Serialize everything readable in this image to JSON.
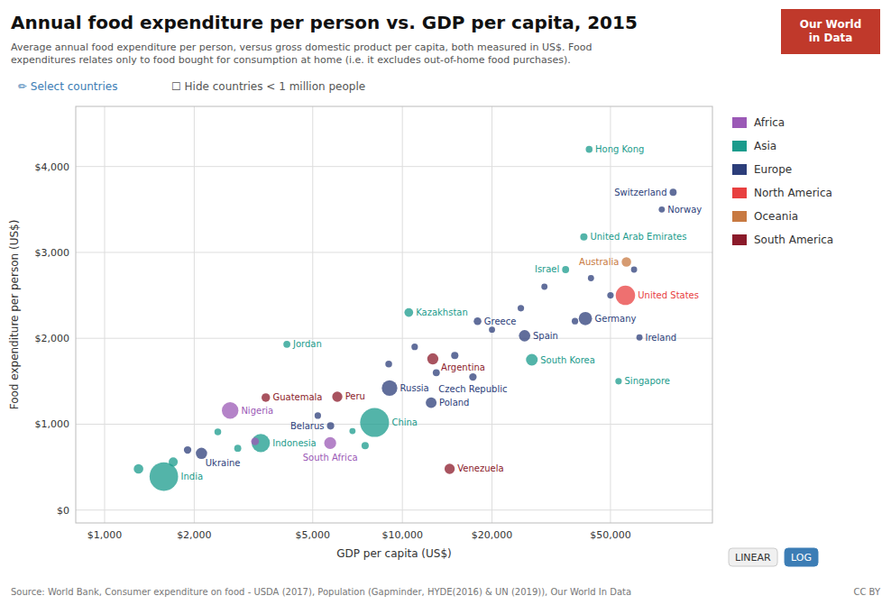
{
  "chart_data": {
    "type": "scatter",
    "title": "Annual food expenditure per person vs. GDP per capita, 2015",
    "subtitle": "Average annual food expenditure per person, versus gross domestic product per capita, both measured in US$. Food\nexpenditures relates only to food bought for consumption at home (i.e. it excludes out-of-home food purchases).",
    "xlabel": "GDP per capita (US$)",
    "ylabel": "Food expenditure per person (US$)",
    "source": "Source: World Bank, Consumer expenditure on food - USDA (2017), Population (Gapminder, HYDE(2016) & UN (2019)), Our World In Data",
    "license": "CC BY",
    "logo_text": "Our World\nin Data",
    "controls": [
      "✏ Select countries",
      "☐ Hide countries < 1 million people"
    ],
    "scale_buttons": [
      "LINEAR",
      "LOG"
    ],
    "log": "x",
    "grid": true,
    "legend": "right",
    "xlim": [
      800,
      110000
    ],
    "xticks": [
      {
        "value": 1000,
        "label": "$1,000"
      },
      {
        "value": 2000,
        "label": "$2,000"
      },
      {
        "value": 5000,
        "label": "$5,000"
      },
      {
        "value": 10000,
        "label": "$10,000"
      },
      {
        "value": 20000,
        "label": "$20,000"
      },
      {
        "value": 50000,
        "label": "$50,000"
      }
    ],
    "ylim": [
      -150,
      4700
    ],
    "yticks": [
      {
        "value": 0,
        "label": "$0"
      },
      {
        "value": 1000,
        "label": "$1,000"
      },
      {
        "value": 2000,
        "label": "$2,000"
      },
      {
        "value": 3000,
        "label": "$3,000"
      },
      {
        "value": 4000,
        "label": "$4,000"
      }
    ],
    "series": [
      {
        "name": "Africa",
        "color": "#9b59b6",
        "x": [
          2640,
          5723,
          3200
        ],
        "values": [
          1160,
          780,
          800
        ],
        "sizes": [
          181,
          55,
          12
        ],
        "labels": [
          "Nigeria",
          "South Africa",
          null
        ]
      },
      {
        "name": "Asia",
        "color": "#1a9b8c",
        "x": [
          1581,
          8069,
          3346,
          4094,
          10510,
          27221,
          35343,
          40699,
          42390,
          53224,
          1300,
          1700,
          2800,
          2400,
          6800,
          7500
        ],
        "values": [
          390,
          1020,
          780,
          1930,
          2300,
          1750,
          2800,
          3180,
          4200,
          1500,
          480,
          560,
          720,
          910,
          920,
          750
        ],
        "sizes": [
          1310,
          1376,
          258,
          8,
          18,
          51,
          8,
          9,
          7,
          6,
          25,
          20,
          8,
          7,
          5,
          9
        ],
        "labels": [
          "India",
          "China",
          "Indonesia",
          "Jordan",
          "Kazakhstan",
          "South Korea",
          "Israel",
          "United Arab Emirates",
          "Hong Kong",
          "Singapore",
          null,
          null,
          null,
          null,
          null,
          null
        ]
      },
      {
        "name": "Europe",
        "color": "#2c3e7a",
        "x": [
          2115,
          5740,
          9057,
          12495,
          17887,
          17256,
          25733,
          41176,
          81167,
          74356,
          62562,
          1900,
          5200,
          9000,
          11000,
          13000,
          15000,
          20000,
          25000,
          30000,
          38000,
          43000,
          50000,
          60000
        ],
        "values": [
          660,
          980,
          1420,
          1250,
          2200,
          1550,
          2030,
          2230,
          3700,
          3500,
          2010,
          700,
          1100,
          1700,
          1900,
          1600,
          1800,
          2100,
          2350,
          2600,
          2200,
          2700,
          2500,
          2800
        ],
        "sizes": [
          45,
          9,
          144,
          38,
          11,
          10,
          46,
          82,
          8,
          5,
          5,
          10,
          6,
          7,
          6,
          8,
          9,
          5,
          6,
          5,
          6,
          5,
          6,
          5
        ],
        "labels": [
          "Ukraine",
          "Belarus",
          "Russia",
          "Poland",
          "Greece",
          "Czech Republic",
          "Spain",
          "Germany",
          "Switzerland",
          "Norway",
          "Ireland",
          null,
          null,
          null,
          null,
          null,
          null,
          null,
          null,
          null,
          null,
          null,
          null,
          null
        ]
      },
      {
        "name": "North America",
        "color": "#e84040",
        "x": [
          56116
        ],
        "values": [
          2500
        ],
        "sizes": [
          322
        ],
        "labels": [
          "United States"
        ]
      },
      {
        "name": "Oceania",
        "color": "#c87941",
        "x": [
          56554
        ],
        "values": [
          2890
        ],
        "sizes": [
          24
        ],
        "labels": [
          "Australia"
        ]
      },
      {
        "name": "South America",
        "color": "#8b1a2a",
        "x": [
          3478,
          6046,
          12654,
          14414
        ],
        "values": [
          1310,
          1320,
          1760,
          480
        ],
        "sizes": [
          16,
          31,
          43,
          31
        ],
        "labels": [
          "Guatemala",
          "Peru",
          "Argentina",
          "Venezuela"
        ]
      }
    ]
  }
}
